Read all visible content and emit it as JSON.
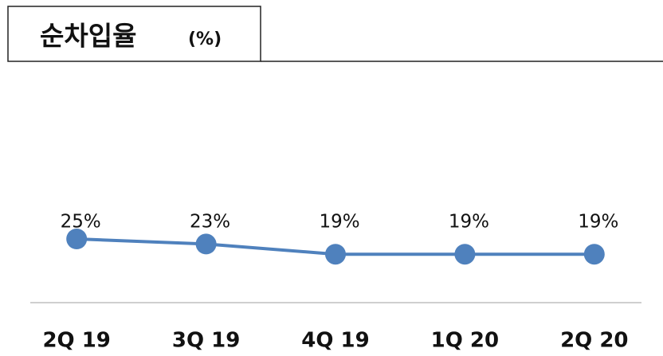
{
  "chart_data": {
    "type": "line",
    "title": "순차입율",
    "title_unit": "(%)",
    "categories": [
      "2Q 19",
      "3Q 19",
      "4Q 19",
      "1Q 20",
      "2Q 20"
    ],
    "series": [
      {
        "name": "순차입율",
        "color": "#4f81bd",
        "values": [
          25,
          23,
          19,
          19,
          19
        ],
        "value_labels": [
          "25%",
          "23%",
          "19%",
          "19%",
          "19%"
        ]
      }
    ],
    "ylim": [
      0,
      30
    ]
  }
}
